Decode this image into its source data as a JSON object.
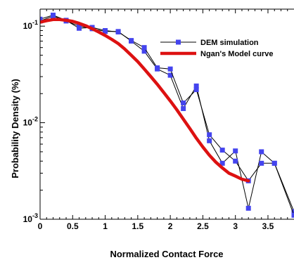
{
  "chart_data": {
    "type": "line",
    "xlabel": "Normalized Contact Force",
    "ylabel": "Probability Density (%)",
    "xlim": [
      0,
      3.9
    ],
    "ylim": [
      0.001,
      0.15
    ],
    "y_scale": "log",
    "grid": false,
    "legend_position": "top-right",
    "x_ticks": [
      {
        "value": 0,
        "label": "0"
      },
      {
        "value": 0.5,
        "label": "0.5"
      },
      {
        "value": 1,
        "label": "1"
      },
      {
        "value": 1.5,
        "label": "1.5"
      },
      {
        "value": 2,
        "label": "2"
      },
      {
        "value": 2.5,
        "label": "2.5"
      },
      {
        "value": 3,
        "label": "3"
      },
      {
        "value": 3.5,
        "label": "3.5"
      }
    ],
    "y_ticks": [
      {
        "value": 0.1,
        "base": "10",
        "exp": "-1"
      },
      {
        "value": 0.01,
        "base": "10",
        "exp": "-2"
      },
      {
        "value": 0.001,
        "base": "10",
        "exp": "-3"
      }
    ],
    "series": [
      {
        "name": "DEM simulation",
        "color": "#4444ee",
        "marker": "square",
        "x": [
          0.0,
          0.2,
          0.4,
          0.6,
          0.8,
          1.0,
          1.2,
          1.4,
          1.6,
          1.8,
          2.0,
          2.2,
          2.4,
          2.6,
          2.8,
          3.0,
          3.2,
          3.4,
          3.6,
          3.9
        ],
        "y": [
          0.113,
          0.127,
          0.113,
          0.1,
          0.094,
          0.088,
          0.088,
          0.07,
          0.055,
          0.036,
          0.031,
          0.014,
          0.024,
          0.0065,
          0.0038,
          0.0051,
          0.0013,
          0.005,
          0.0038,
          0.0012
        ]
      },
      {
        "name": "DEM simulation",
        "color": "#4444ee",
        "marker": "square",
        "x": [
          0.0,
          0.2,
          0.4,
          0.6,
          0.8,
          1.0,
          1.2,
          1.4,
          1.6,
          1.8,
          2.0,
          2.2,
          2.4,
          2.6,
          2.8,
          3.0,
          3.2,
          3.4,
          3.6,
          3.9
        ],
        "y": [
          0.118,
          0.13,
          0.115,
          0.095,
          0.097,
          0.09,
          0.087,
          0.071,
          0.06,
          0.037,
          0.036,
          0.016,
          0.022,
          0.0075,
          0.0052,
          0.004,
          0.0025,
          0.0038,
          0.0038,
          0.0011
        ]
      },
      {
        "name": "Ngan's Model curve",
        "color": "#dd1111",
        "marker": "none",
        "x": [
          0.0,
          0.1,
          0.2,
          0.3,
          0.4,
          0.5,
          0.6,
          0.7,
          0.8,
          0.9,
          1.0,
          1.1,
          1.2,
          1.3,
          1.4,
          1.5,
          1.6,
          1.7,
          1.8,
          1.9,
          2.0,
          2.1,
          2.2,
          2.3,
          2.4,
          2.5,
          2.6,
          2.7,
          2.8,
          2.9,
          3.0,
          3.1,
          3.2
        ],
        "y": [
          0.11,
          0.114,
          0.117,
          0.117,
          0.115,
          0.112,
          0.107,
          0.101,
          0.094,
          0.087,
          0.08,
          0.073,
          0.066,
          0.058,
          0.05,
          0.043,
          0.036,
          0.03,
          0.025,
          0.0205,
          0.0168,
          0.0136,
          0.0109,
          0.0087,
          0.0069,
          0.0056,
          0.0046,
          0.0039,
          0.0034,
          0.003,
          0.0028,
          0.0026,
          0.0025
        ]
      }
    ],
    "legend": [
      {
        "label": "DEM simulation",
        "style": "line-square",
        "color": "#4444ee"
      },
      {
        "label": "Ngan's Model curve",
        "style": "thick-line",
        "color": "#dd1111"
      }
    ]
  }
}
